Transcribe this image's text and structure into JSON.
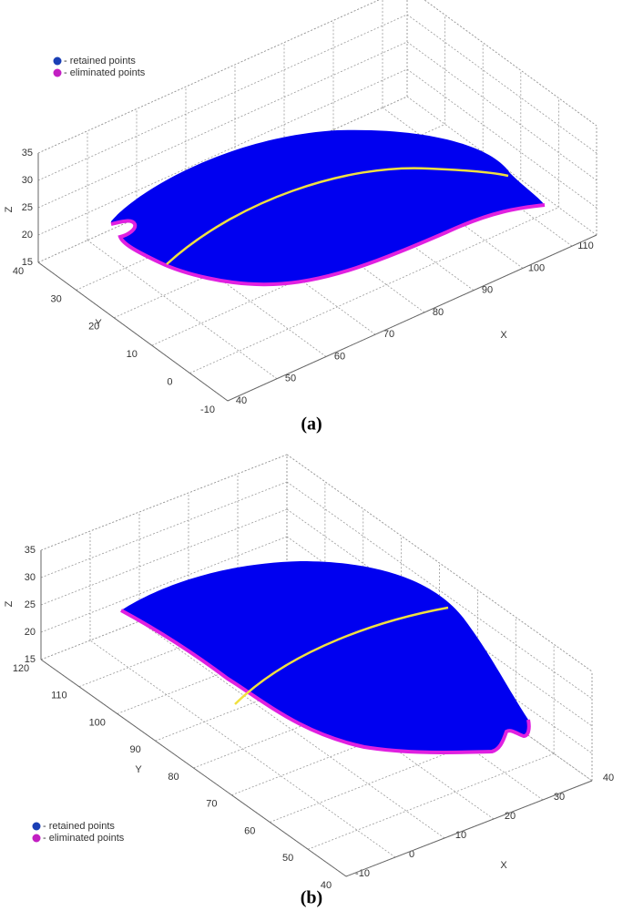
{
  "chart_data": [
    {
      "type": "scatter3d",
      "caption": "(a)",
      "legend": [
        {
          "name": "- retained points",
          "color": "#1a3fb5"
        },
        {
          "name": "- eliminated points",
          "color": "#c21fc2"
        }
      ],
      "xlabel": "X",
      "ylabel": "Y",
      "zlabel": "Z",
      "xlim": [
        40,
        115
      ],
      "xticks": [
        40,
        50,
        60,
        70,
        80,
        90,
        100,
        110
      ],
      "ylim": [
        -10,
        40
      ],
      "yticks": [
        -10,
        0,
        10,
        20,
        30,
        40
      ],
      "zlim": [
        15,
        35
      ],
      "zticks": [
        15,
        20,
        25,
        30,
        35
      ],
      "grid": true
    },
    {
      "type": "scatter3d",
      "caption": "(b)",
      "legend": [
        {
          "name": "- retained points",
          "color": "#1a3fb5"
        },
        {
          "name": "- eliminated points",
          "color": "#c21fc2"
        }
      ],
      "xlabel": "X",
      "ylabel": "Y",
      "zlabel": "Z",
      "xlim": [
        -10,
        40
      ],
      "xticks": [
        -10,
        0,
        10,
        20,
        30,
        40
      ],
      "ylim": [
        40,
        120
      ],
      "yticks": [
        40,
        50,
        60,
        70,
        80,
        90,
        100,
        110,
        120
      ],
      "zlim": [
        15,
        35
      ],
      "zticks": [
        15,
        20,
        25,
        30,
        35
      ],
      "grid": true
    }
  ]
}
